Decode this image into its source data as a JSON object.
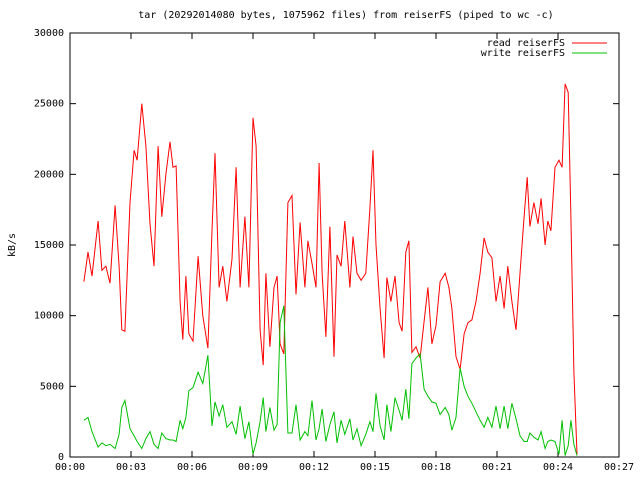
{
  "chart_data": {
    "type": "line",
    "title": "tar (20292014080 bytes, 1075962 files) from reiserFS (piped to wc -c)",
    "ylabel": "kB/s",
    "x": [
      41,
      53,
      65,
      83,
      94,
      106,
      118,
      133,
      145,
      153,
      162,
      177,
      189,
      198,
      212,
      224,
      236,
      248,
      260,
      271,
      283,
      295,
      304,
      313,
      325,
      333,
      342,
      351,
      363,
      378,
      392,
      407,
      419,
      428,
      440,
      451,
      463,
      478,
      490,
      502,
      516,
      528,
      540,
      549,
      561,
      570,
      578,
      590,
      602,
      611,
      620,
      631,
      643,
      655,
      667,
      679,
      693,
      702,
      714,
      726,
      735,
      744,
      755,
      767,
      779,
      788,
      800,
      811,
      826,
      835,
      847,
      859,
      873,
      885,
      894,
      903,
      915,
      927,
      935,
      947,
      959,
      971,
      980,
      991,
      1000,
      1009,
      1021,
      1033,
      1045,
      1056,
      1068,
      1080,
      1092,
      1107,
      1118,
      1127,
      1139,
      1151,
      1163,
      1174,
      1186,
      1198,
      1210,
      1222,
      1233,
      1245,
      1257,
      1269,
      1281,
      1292,
      1304,
      1316,
      1328,
      1340,
      1349,
      1357,
      1369,
      1381,
      1390,
      1402,
      1410,
      1419,
      1431,
      1443,
      1452,
      1461,
      1470,
      1478,
      1487,
      1496
    ],
    "series": [
      {
        "name": "read reiserFS",
        "color": "#ff0000",
        "values": [
          12400,
          14500,
          12800,
          16700,
          13200,
          13500,
          12300,
          17800,
          13500,
          9000,
          8900,
          18000,
          21700,
          21000,
          25000,
          22000,
          16500,
          13500,
          22000,
          17000,
          20000,
          22300,
          20500,
          20600,
          11000,
          8300,
          12800,
          8700,
          8200,
          14200,
          10000,
          7700,
          16000,
          21500,
          12000,
          13500,
          11000,
          14000,
          20500,
          12000,
          17000,
          12000,
          24000,
          22000,
          9000,
          6500,
          13000,
          7800,
          12000,
          12800,
          8000,
          7300,
          18000,
          18500,
          11500,
          16600,
          12000,
          15300,
          13700,
          12000,
          20800,
          13000,
          8500,
          16300,
          7100,
          14300,
          13500,
          16700,
          12000,
          15600,
          13000,
          12500,
          13000,
          17600,
          21700,
          15000,
          10500,
          7000,
          12700,
          11000,
          12800,
          9500,
          8900,
          14500,
          15300,
          7400,
          7800,
          7000,
          9600,
          12000,
          8000,
          9300,
          12400,
          13000,
          12000,
          10500,
          7100,
          6200,
          8700,
          9500,
          9700,
          11000,
          13000,
          15500,
          14500,
          14100,
          11000,
          12800,
          10500,
          13500,
          11000,
          9000,
          13000,
          17000,
          19800,
          16300,
          18000,
          16500,
          18300,
          15000,
          16700,
          16000,
          20500,
          21000,
          20500,
          26400,
          25800,
          17000,
          6000,
          200
        ]
      },
      {
        "name": "write reiserFS",
        "color": "#00c000",
        "values": [
          2600,
          2800,
          1800,
          700,
          1000,
          800,
          900,
          600,
          1600,
          3500,
          4000,
          2000,
          1500,
          1100,
          600,
          1300,
          1800,
          900,
          600,
          1700,
          1300,
          1200,
          1200,
          1100,
          2600,
          2000,
          2800,
          4700,
          4900,
          6000,
          5200,
          7200,
          2200,
          3900,
          2900,
          3700,
          2100,
          2500,
          1600,
          3600,
          1300,
          2500,
          200,
          1000,
          2500,
          4200,
          1800,
          3500,
          1900,
          2300,
          9500,
          10700,
          1700,
          1700,
          3700,
          1200,
          1800,
          1500,
          4000,
          1200,
          2000,
          3400,
          1100,
          2300,
          3200,
          1000,
          2600,
          1600,
          2700,
          1200,
          2000,
          800,
          1600,
          2500,
          1800,
          4500,
          2200,
          1200,
          3700,
          1800,
          4200,
          3300,
          2600,
          4800,
          2700,
          6600,
          7000,
          7300,
          4800,
          4300,
          3900,
          3800,
          3000,
          3500,
          3000,
          1900,
          2800,
          6300,
          5000,
          4300,
          3800,
          3200,
          2600,
          2100,
          2800,
          2100,
          3600,
          2000,
          3600,
          2000,
          3800,
          2700,
          1500,
          1100,
          1100,
          1700,
          1400,
          1200,
          1800,
          600,
          1100,
          1200,
          1100,
          200,
          2600,
          100,
          800,
          2600,
          900,
          100
        ]
      }
    ],
    "xlim": [
      0,
      1620
    ],
    "xticks": [
      {
        "value": 0,
        "label": "00:00"
      },
      {
        "value": 180,
        "label": "00:03"
      },
      {
        "value": 360,
        "label": "00:06"
      },
      {
        "value": 540,
        "label": "00:09"
      },
      {
        "value": 720,
        "label": "00:12"
      },
      {
        "value": 900,
        "label": "00:15"
      },
      {
        "value": 1080,
        "label": "00:18"
      },
      {
        "value": 1260,
        "label": "00:21"
      },
      {
        "value": 1440,
        "label": "00:24"
      },
      {
        "value": 1620,
        "label": "00:27"
      }
    ],
    "ylim": [
      0,
      30000
    ],
    "yticks": [
      0,
      5000,
      10000,
      15000,
      20000,
      25000,
      30000
    ],
    "grid": false,
    "legend": "upper right"
  }
}
